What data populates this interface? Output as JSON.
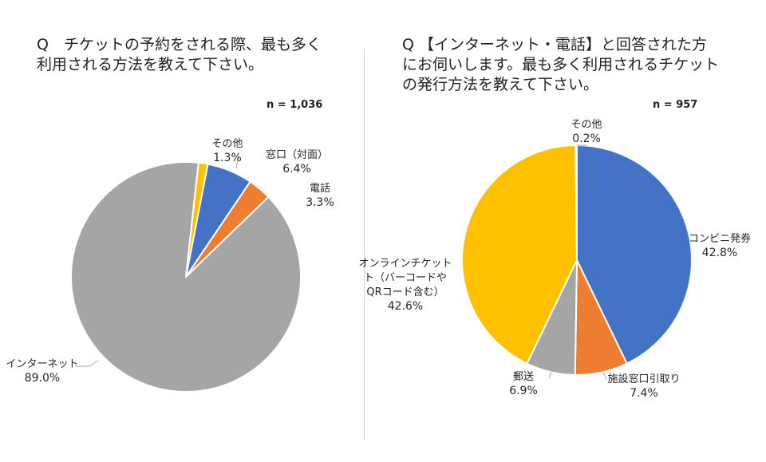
{
  "chart_data": [
    {
      "type": "pie",
      "title_lines": [
        "Q　チケットの予約をされる際、最も多く",
        "利用される方法を教えて下さい。"
      ],
      "sample_size": "n = 1,036",
      "slices": [
        {
          "label_lines": [
            "窓口（対面）"
          ],
          "value": 6.4,
          "value_label": "6.4%",
          "color": "#4472C4"
        },
        {
          "label_lines": [
            "電話"
          ],
          "value": 3.3,
          "value_label": "3.3%",
          "color": "#ED7D31"
        },
        {
          "label_lines": [
            "インターネット"
          ],
          "value": 89.0,
          "value_label": "89.0%",
          "color": "#A5A5A5"
        },
        {
          "label_lines": [
            "その他"
          ],
          "value": 1.3,
          "value_label": "1.3%",
          "color": "#FFC000"
        }
      ]
    },
    {
      "type": "pie",
      "title_lines": [
        "Q 【インターネット・電話】と回答された方",
        "にお伺いします。最も多く利用されるチケット",
        "の発行方法を教えて下さい。"
      ],
      "sample_size": "n = 957",
      "slices": [
        {
          "label_lines": [
            "コンビニ発券"
          ],
          "value": 42.8,
          "value_label": "42.8%",
          "color": "#4472C4"
        },
        {
          "label_lines": [
            "施設窓口引取り"
          ],
          "value": 7.4,
          "value_label": "7.4%",
          "color": "#ED7D31"
        },
        {
          "label_lines": [
            "郵送"
          ],
          "value": 6.9,
          "value_label": "6.9%",
          "color": "#A5A5A5"
        },
        {
          "label_lines": [
            "オンラインチケット",
            "ト（バーコードや",
            "QRコード含む）"
          ],
          "value": 42.6,
          "value_label": "42.6%",
          "color": "#FFC000"
        },
        {
          "label_lines": [
            "その他"
          ],
          "value": 0.2,
          "value_label": "0.2%",
          "color": "#5B9BD5"
        }
      ]
    }
  ]
}
